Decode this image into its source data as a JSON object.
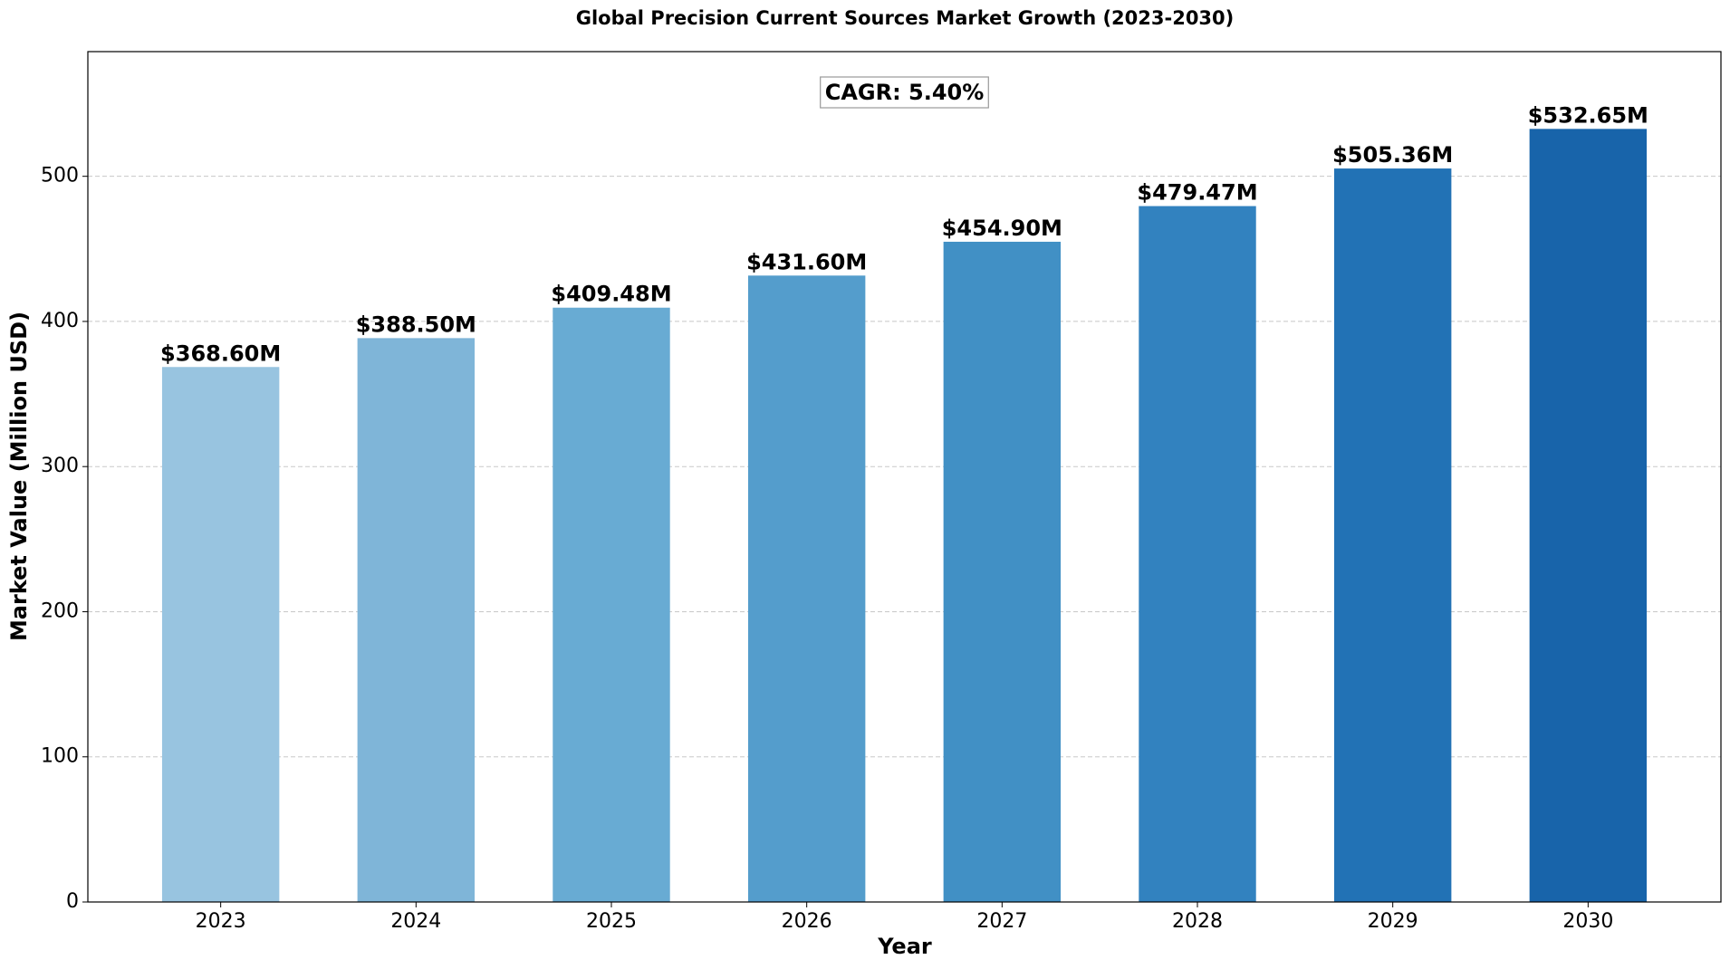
{
  "chart_data": {
    "type": "bar",
    "title": "Global Precision Current Sources Market Growth (2023-2030)",
    "x_label": "Year",
    "y_label": "Market Value (Million USD)",
    "annotation": "CAGR: 5.40%",
    "categories": [
      "2023",
      "2024",
      "2025",
      "2026",
      "2027",
      "2028",
      "2029",
      "2030"
    ],
    "values": [
      368.6,
      388.5,
      409.48,
      431.6,
      454.9,
      479.47,
      505.36,
      532.65
    ],
    "value_labels": [
      "$368.60M",
      "$388.50M",
      "$409.48M",
      "$431.60M",
      "$454.90M",
      "$479.47M",
      "$505.36M",
      "$532.65M"
    ],
    "colors": [
      "#98c4e0",
      "#7fb5d8",
      "#68abd3",
      "#549dcc",
      "#4190c5",
      "#3282bf",
      "#2272b5",
      "#1864aa"
    ],
    "ylim": [
      0,
      585.9
    ],
    "yticks": [
      0,
      100,
      200,
      300,
      400,
      500
    ],
    "grid": true
  }
}
